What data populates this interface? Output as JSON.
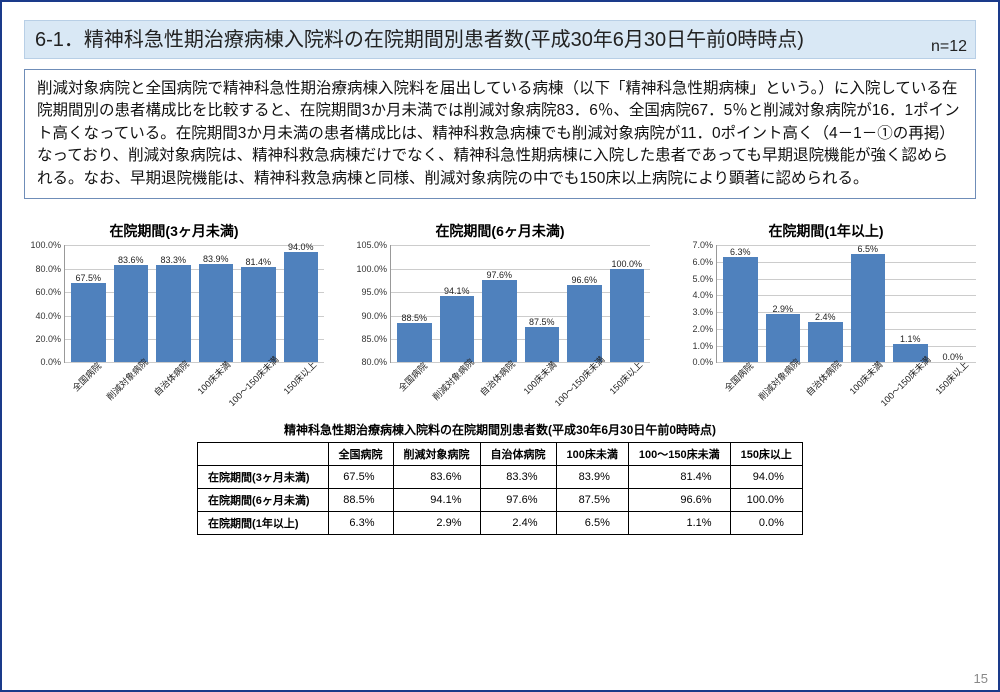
{
  "title": "6-1．精神科急性期治療病棟入院料の在院期間別患者数(平成30年6月30日午前0時時点)",
  "n_label": "n=12",
  "description": "削減対象病院と全国病院で精神科急性期治療病棟入院料を届出している病棟（以下「精神科急性期病棟」という。）に入院している在院期間別の患者構成比を比較すると、在院期間3か月未満では削減対象病院83．6％、全国病院67．5％と削減対象病院が16．1ポイント高くなっている。在院期間3か月未満の患者構成比は、精神科救急病棟でも削減対象病院が11．0ポイント高く（4－1－①の再掲）なっており、削減対象病院は、精神科救急病棟だけでなく、精神科急性期病棟に入院した患者であっても早期退院機能が強く認められる。なお、早期退院機能は、精神科救急病棟と同様、削減対象病院の中でも150床以上病院により顕著に認められる。",
  "categories": [
    "全国病院",
    "削減対象病院",
    "自治体病院",
    "100床未満",
    "100～150床未満",
    "150床以上"
  ],
  "bar_color": "#4f81bd",
  "grid_color": "#cccccc",
  "label_fontsize": 9,
  "title_fontsize": 14,
  "charts": [
    {
      "title": "在院期間(3ヶ月未満)",
      "values": [
        67.5,
        83.6,
        83.3,
        83.9,
        81.4,
        94.0
      ],
      "labels": [
        "67.5%",
        "83.6%",
        "83.3%",
        "83.9%",
        "81.4%",
        "94.0%"
      ],
      "ymin": 0,
      "ymax": 100,
      "ytick_step": 20,
      "yticks": [
        "0.0%",
        "20.0%",
        "40.0%",
        "60.0%",
        "80.0%",
        "100.0%"
      ]
    },
    {
      "title": "在院期間(6ヶ月未満)",
      "values": [
        88.5,
        94.1,
        97.6,
        87.5,
        96.6,
        100.0
      ],
      "labels": [
        "88.5%",
        "94.1%",
        "97.6%",
        "87.5%",
        "96.6%",
        "100.0%"
      ],
      "ymin": 80,
      "ymax": 105,
      "ytick_step": 5,
      "yticks": [
        "80.0%",
        "85.0%",
        "90.0%",
        "95.0%",
        "100.0%",
        "105.0%"
      ]
    },
    {
      "title": "在院期間(1年以上)",
      "values": [
        6.3,
        2.9,
        2.4,
        6.5,
        1.1,
        0.0
      ],
      "labels": [
        "6.3%",
        "2.9%",
        "2.4%",
        "6.5%",
        "1.1%",
        "0.0%"
      ],
      "ymin": 0,
      "ymax": 7,
      "ytick_step": 1,
      "yticks": [
        "0.0%",
        "1.0%",
        "2.0%",
        "3.0%",
        "4.0%",
        "5.0%",
        "6.0%",
        "7.0%"
      ]
    }
  ],
  "table": {
    "title": "精神科急性期治療病棟入院料の在院期間別患者数(平成30年6月30日午前0時時点)",
    "columns": [
      "全国病院",
      "削減対象病院",
      "自治体病院",
      "100床未満",
      "100～150床未満",
      "150床以上"
    ],
    "rows": [
      {
        "label": "在院期間(3ヶ月未満)",
        "cells": [
          "67.5%",
          "83.6%",
          "83.3%",
          "83.9%",
          "81.4%",
          "94.0%"
        ]
      },
      {
        "label": "在院期間(6ヶ月未満)",
        "cells": [
          "88.5%",
          "94.1%",
          "97.6%",
          "87.5%",
          "96.6%",
          "100.0%"
        ]
      },
      {
        "label": "在院期間(1年以上)",
        "cells": [
          "6.3%",
          "2.9%",
          "2.4%",
          "6.5%",
          "1.1%",
          "0.0%"
        ]
      }
    ]
  },
  "page_number": "15"
}
